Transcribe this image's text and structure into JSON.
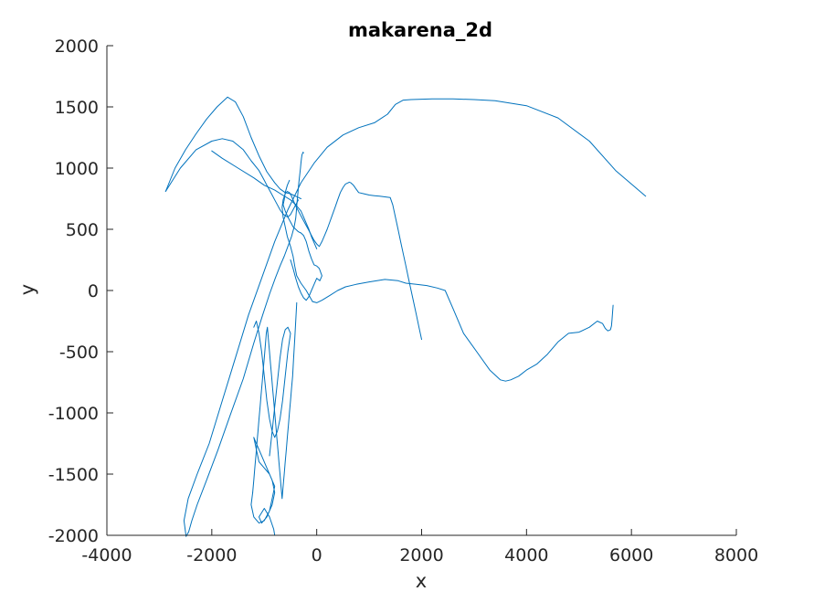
{
  "chart_data": {
    "type": "line",
    "title": "makarena_2d",
    "xlabel": "x",
    "ylabel": "y",
    "xlim": [
      -4000,
      8000
    ],
    "ylim": [
      -2000,
      2000
    ],
    "x_ticks": [
      -4000,
      -2000,
      0,
      2000,
      4000,
      6000,
      8000
    ],
    "x_tick_labels": [
      "-4000",
      "-2000",
      "0",
      "2000",
      "4000",
      "6000",
      "8000"
    ],
    "y_ticks": [
      -2000,
      -1500,
      -1000,
      -500,
      0,
      500,
      1000,
      1500,
      2000
    ],
    "y_tick_labels": [
      "-2000",
      "-1500",
      "-1000",
      "-500",
      "0",
      "500",
      "1000",
      "1500",
      "2000"
    ],
    "grid": false,
    "box": false,
    "line_color": "#0072BD",
    "series": [
      {
        "x": [
          6270,
          5700,
          5200,
          4600,
          4000,
          3400,
          3000,
          2600,
          2200,
          1800,
          1650,
          1500,
          1350,
          1100,
          800,
          500,
          200,
          -50,
          -300,
          -550,
          -800,
          -1050,
          -1300,
          -1550,
          -1800,
          -2050,
          -2280,
          -2450,
          -2530,
          -2490,
          -2440,
          -2380,
          -2280,
          -2100,
          -1880,
          -1650,
          -1400,
          -1200,
          -1030,
          -900,
          -790,
          -700,
          -620,
          -550,
          -480,
          -430,
          -400,
          -390,
          -380,
          -370,
          -360,
          -350,
          -340,
          -330,
          -320,
          -310,
          -300,
          -290,
          -280,
          -270,
          -260,
          -250
        ],
        "y": [
          770,
          980,
          1220,
          1410,
          1510,
          1550,
          1560,
          1565,
          1565,
          1560,
          1555,
          1520,
          1440,
          1370,
          1330,
          1270,
          1170,
          1040,
          880,
          660,
          400,
          100,
          -200,
          -550,
          -900,
          -1250,
          -1500,
          -1700,
          -1880,
          -2010,
          -1970,
          -1880,
          -1750,
          -1550,
          -1300,
          -1020,
          -720,
          -430,
          -200,
          -30,
          100,
          200,
          280,
          360,
          440,
          520,
          590,
          640,
          690,
          740,
          790,
          840,
          880,
          920,
          960,
          1000,
          1040,
          1080,
          1110,
          1120,
          1130,
          1125
        ]
      },
      {
        "x": [
          5650,
          5640,
          5630,
          5620,
          5600,
          5550,
          5500,
          5450,
          5350,
          5200,
          5000,
          4800,
          4600,
          4400,
          4200,
          4000,
          3850,
          3700,
          3600,
          3500,
          3300,
          3050,
          2800,
          2600,
          2450,
          2300,
          2100,
          1900,
          1700,
          1550,
          1300,
          1000,
          750,
          550,
          400,
          250,
          100,
          0,
          -80
        ],
        "y": [
          -120,
          -180,
          -240,
          -290,
          -320,
          -330,
          -310,
          -270,
          -250,
          -300,
          -340,
          -350,
          -420,
          -520,
          -600,
          -650,
          -700,
          -730,
          -740,
          -730,
          -650,
          -500,
          -350,
          -150,
          0,
          20,
          40,
          50,
          60,
          80,
          90,
          70,
          50,
          30,
          0,
          -40,
          -80,
          -100,
          -90
        ]
      },
      {
        "x": [
          -80,
          -200,
          -300,
          -380,
          -420,
          -450,
          -500,
          -560,
          -600,
          -640,
          -660,
          -640,
          -600,
          -560,
          -520,
          -480,
          -440,
          -400,
          -350,
          -300,
          -250,
          -200,
          -150,
          -100,
          -50,
          0,
          50,
          100,
          150,
          200,
          250,
          300,
          350,
          400,
          450,
          500,
          550,
          600,
          620,
          650,
          700,
          750,
          800,
          900,
          1000,
          1100,
          1200,
          1300,
          1400,
          1450,
          1500,
          1550,
          1600,
          1650,
          1700,
          1750,
          1800,
          1850,
          1900,
          1950,
          2000
        ],
        "y": [
          -90,
          0,
          60,
          120,
          200,
          280,
          360,
          440,
          520,
          600,
          680,
          740,
          790,
          810,
          800,
          770,
          730,
          690,
          650,
          610,
          570,
          530,
          490,
          450,
          410,
          380,
          360,
          400,
          450,
          500,
          560,
          620,
          680,
          740,
          800,
          840,
          870,
          880,
          885,
          880,
          860,
          830,
          800,
          790,
          780,
          775,
          770,
          765,
          760,
          700,
          600,
          500,
          400,
          300,
          200,
          100,
          0,
          -100,
          -200,
          -300,
          -400
        ]
      },
      {
        "x": [
          -2880,
          -2700,
          -2500,
          -2300,
          -2100,
          -1900,
          -1700,
          -1550,
          -1400,
          -1250,
          -1100,
          -950,
          -800,
          -700,
          -600,
          -500,
          -450,
          -400,
          -350,
          -300
        ],
        "y": [
          810,
          1000,
          1150,
          1280,
          1400,
          1500,
          1580,
          1540,
          1420,
          1250,
          1100,
          970,
          880,
          830,
          800,
          790,
          780,
          770,
          760,
          750
        ]
      },
      {
        "x": [
          -2880,
          -2600,
          -2300,
          -2000,
          -1800,
          -1600,
          -1400,
          -1250,
          -1100,
          -1000,
          -950,
          -900,
          -850,
          -800,
          -750,
          -700,
          -650,
          -600,
          -550,
          -500,
          -450,
          -400,
          -350
        ],
        "y": [
          810,
          1000,
          1150,
          1220,
          1240,
          1220,
          1150,
          1060,
          980,
          900,
          860,
          820,
          780,
          740,
          700,
          660,
          630,
          610,
          600,
          620,
          660,
          700,
          740
        ]
      },
      {
        "x": [
          -2000,
          -1800,
          -1500,
          -1200,
          -1000,
          -800,
          -650,
          -500,
          -400,
          -300,
          -250,
          -200,
          -150,
          -100,
          -50,
          0
        ],
        "y": [
          1140,
          1080,
          1000,
          920,
          860,
          820,
          780,
          740,
          700,
          650,
          600,
          550,
          500,
          440,
          390,
          340
        ]
      },
      {
        "x": [
          -520,
          -560,
          -600,
          -620,
          -640,
          -600,
          -550,
          -500,
          -450,
          -400,
          -350,
          -300,
          -250,
          -200,
          -150,
          -100,
          -50,
          0,
          50,
          100,
          60,
          0,
          -50,
          -100,
          -150,
          -200,
          -250,
          -300,
          -350,
          -400,
          -450,
          -500
        ],
        "y": [
          900,
          860,
          800,
          740,
          700,
          650,
          600,
          560,
          520,
          500,
          480,
          470,
          450,
          400,
          320,
          260,
          210,
          200,
          180,
          120,
          80,
          100,
          50,
          0,
          -50,
          -80,
          -60,
          -20,
          30,
          100,
          180,
          250
        ]
      },
      {
        "x": [
          -380,
          -400,
          -420,
          -440,
          -460,
          -480,
          -500,
          -520,
          -540,
          -560,
          -580,
          -600,
          -620,
          -640,
          -660,
          -680,
          -700,
          -720,
          -740,
          -760,
          -780,
          -800,
          -820,
          -840,
          -860,
          -880,
          -900,
          -920,
          -940,
          -960,
          -980,
          -1000,
          -1020,
          -1040,
          -1060,
          -1080,
          -1100,
          -1120,
          -1140,
          -1160,
          -1180,
          -1200,
          -1220
        ],
        "y": [
          -100,
          -250,
          -400,
          -550,
          -700,
          -800,
          -900,
          -1000,
          -1100,
          -1200,
          -1300,
          -1400,
          -1500,
          -1600,
          -1700,
          -1600,
          -1500,
          -1400,
          -1300,
          -1200,
          -1100,
          -1000,
          -900,
          -800,
          -700,
          -600,
          -500,
          -400,
          -300,
          -350,
          -450,
          -550,
          -650,
          -750,
          -850,
          -950,
          -1050,
          -1150,
          -1250,
          -1350,
          -1450,
          -1550,
          -1650
        ]
      },
      {
        "x": [
          -1220,
          -1250,
          -1200,
          -1100,
          -1000,
          -900,
          -850,
          -800,
          -900,
          -1000,
          -1100,
          -1150,
          -1200,
          -1150,
          -1050,
          -950,
          -850,
          -800,
          -850,
          -950,
          -1050,
          -1100,
          -1000,
          -900,
          -820,
          -800
        ],
        "y": [
          -1650,
          -1750,
          -1850,
          -1900,
          -1880,
          -1800,
          -1700,
          -1600,
          -1500,
          -1450,
          -1400,
          -1300,
          -1200,
          -1250,
          -1350,
          -1450,
          -1550,
          -1650,
          -1750,
          -1850,
          -1900,
          -1850,
          -1780,
          -1850,
          -1950,
          -2000
        ]
      },
      {
        "x": [
          -1200,
          -1150,
          -1100,
          -1050,
          -1000,
          -950,
          -900,
          -850,
          -800,
          -750,
          -700,
          -650,
          -600,
          -550,
          -500,
          -550,
          -600,
          -650,
          -700,
          -750,
          -800,
          -850,
          -900
        ],
        "y": [
          -300,
          -250,
          -350,
          -500,
          -700,
          -900,
          -1050,
          -1150,
          -1200,
          -1150,
          -1050,
          -900,
          -700,
          -500,
          -350,
          -300,
          -320,
          -400,
          -550,
          -750,
          -950,
          -1150,
          -1350
        ]
      }
    ]
  }
}
